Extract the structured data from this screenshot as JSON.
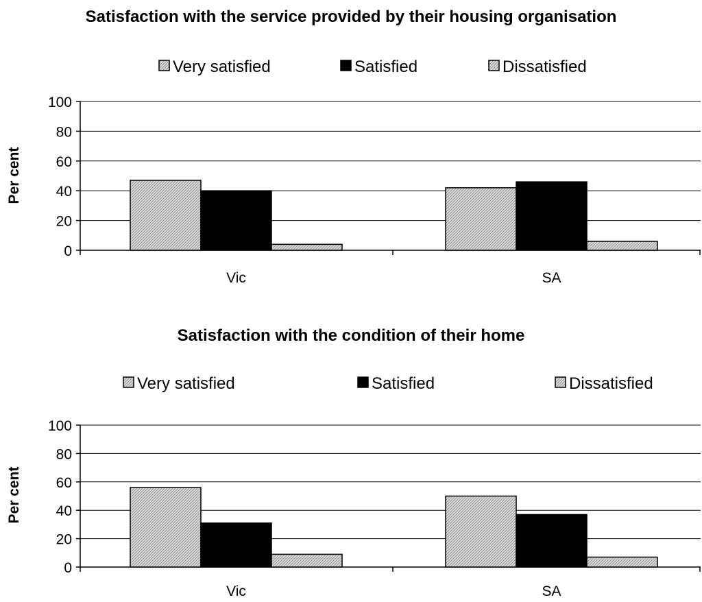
{
  "chart_data": [
    {
      "type": "bar",
      "title": "Satisfaction with the service provided by their housing organisation",
      "ylabel": "Per cent",
      "xlabel": "",
      "categories": [
        "Vic",
        "SA"
      ],
      "series": [
        {
          "name": "Very satisfied",
          "values": [
            47,
            42
          ],
          "color": "#c8c8c8",
          "pattern": "hatch"
        },
        {
          "name": "Satisfied",
          "values": [
            40,
            46
          ],
          "color": "#000000",
          "pattern": "solid"
        },
        {
          "name": "Dissatisfied",
          "values": [
            4,
            6
          ],
          "color": "#c8c8c8",
          "pattern": "hatch"
        }
      ],
      "ylim": [
        0,
        100
      ],
      "yticks": [
        "0",
        "20",
        "40",
        "60",
        "80",
        "100"
      ],
      "grid": true,
      "legend_position": "top"
    },
    {
      "type": "bar",
      "title": "Satisfaction with the condition of their home",
      "ylabel": "Per cent",
      "xlabel": "",
      "categories": [
        "Vic",
        "SA"
      ],
      "series": [
        {
          "name": "Very satisfied",
          "values": [
            56,
            50
          ],
          "color": "#c8c8c8",
          "pattern": "hatch"
        },
        {
          "name": "Satisfied",
          "values": [
            31,
            37
          ],
          "color": "#000000",
          "pattern": "solid"
        },
        {
          "name": "Dissatisfied",
          "values": [
            9,
            7
          ],
          "color": "#c8c8c8",
          "pattern": "hatch"
        }
      ],
      "ylim": [
        0,
        100
      ],
      "yticks": [
        "0",
        "20",
        "40",
        "60",
        "80",
        "100"
      ],
      "grid": true,
      "legend_position": "top"
    }
  ]
}
